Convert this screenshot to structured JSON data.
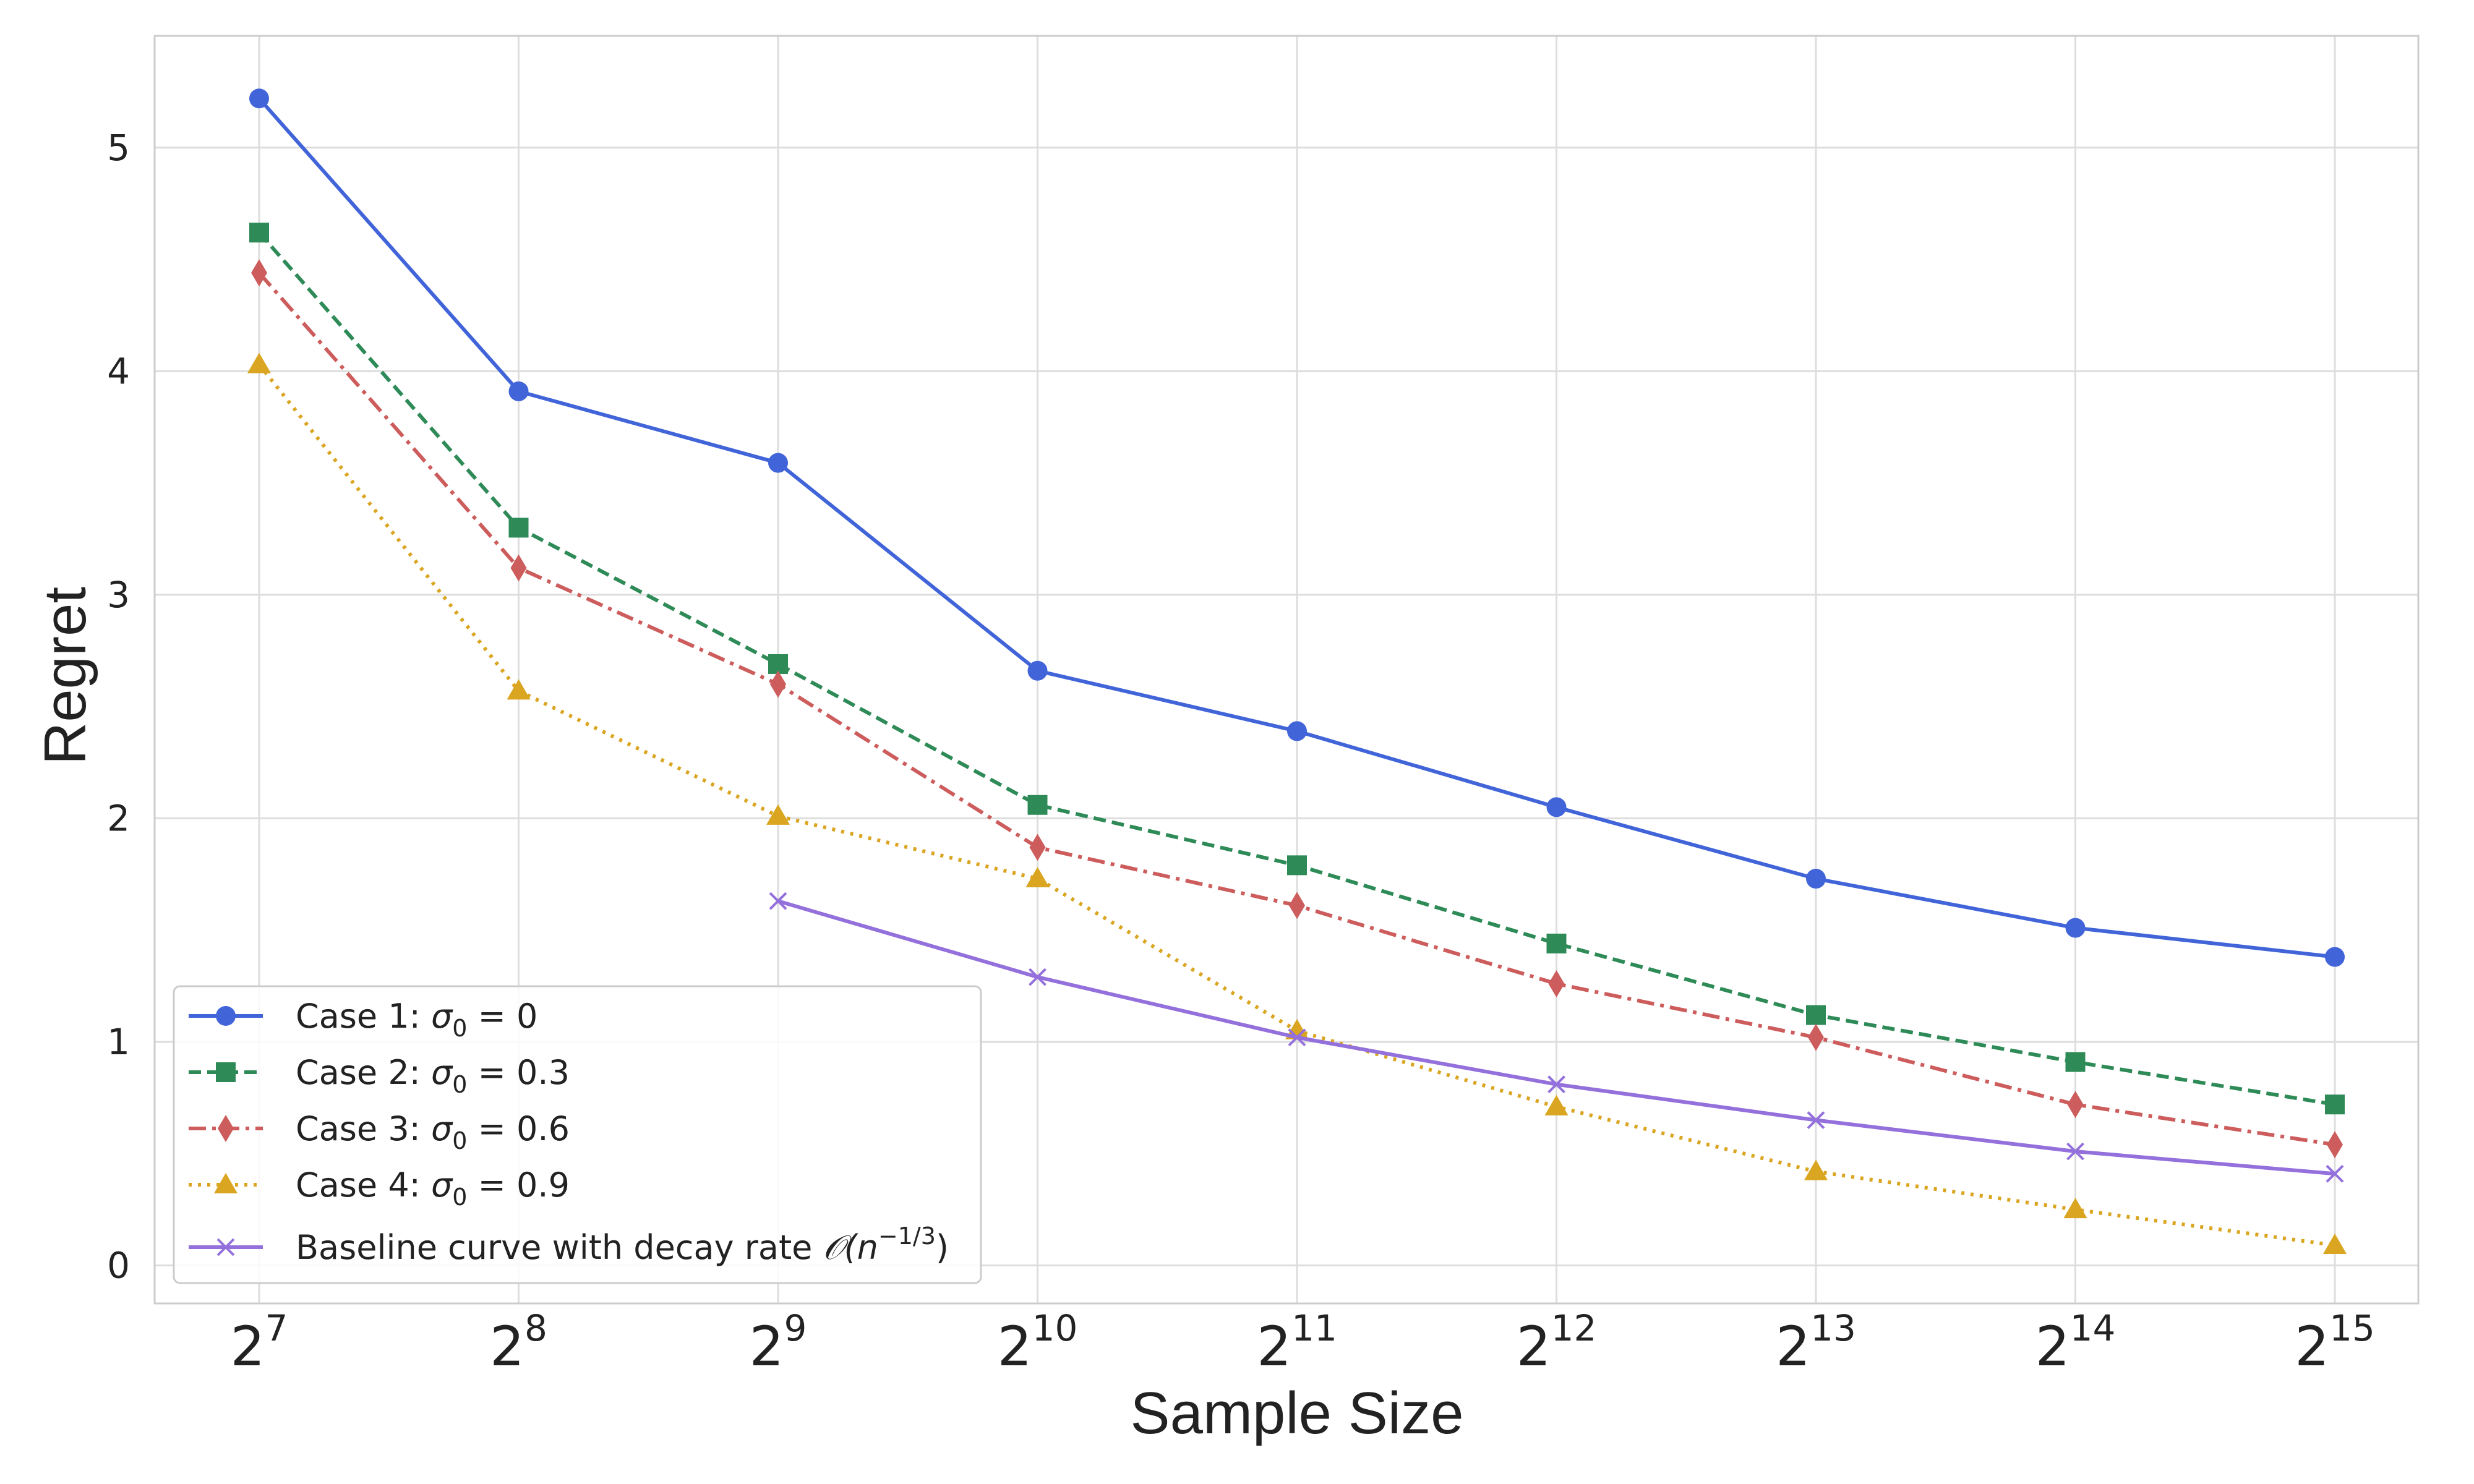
{
  "chart_data": {
    "type": "line",
    "title": "",
    "xlabel": "Sample Size",
    "ylabel": "Regret",
    "x_scale": "log2",
    "x_exponents": [
      7,
      8,
      9,
      10,
      11,
      12,
      13,
      14,
      15
    ],
    "x_base": "2",
    "x_ticks": [
      "7",
      "8",
      "9",
      "10",
      "11",
      "12",
      "13",
      "14",
      "15"
    ],
    "ylim": [
      -0.17,
      5.5
    ],
    "y_ticks": [
      "0",
      "1",
      "2",
      "3",
      "4",
      "5"
    ],
    "grid": true,
    "legend_position": "lower-left",
    "series": [
      {
        "name": "Case 1: σ0 = 0",
        "legend_label": "Case 1: ",
        "legend_math": "σ",
        "legend_sub": "0",
        "legend_rest": " = 0",
        "color": "#4164d9",
        "line_style": "solid",
        "marker": "circle",
        "x_exponents": [
          7,
          8,
          9,
          10,
          11,
          12,
          13,
          14,
          15
        ],
        "values": [
          5.22,
          3.91,
          3.59,
          2.66,
          2.39,
          2.05,
          1.73,
          1.51,
          1.38
        ]
      },
      {
        "name": "Case 2: σ0 = 0.3",
        "legend_label": "Case 2: ",
        "legend_math": "σ",
        "legend_sub": "0",
        "legend_rest": " = 0.3",
        "color": "#2e8b57",
        "line_style": "dashed",
        "marker": "square",
        "x_exponents": [
          7,
          8,
          9,
          10,
          11,
          12,
          13,
          14,
          15
        ],
        "values": [
          4.62,
          3.3,
          2.69,
          2.06,
          1.79,
          1.44,
          1.12,
          0.91,
          0.72
        ]
      },
      {
        "name": "Case 3: σ0 = 0.6",
        "legend_label": "Case 3: ",
        "legend_math": "σ",
        "legend_sub": "0",
        "legend_rest": " = 0.6",
        "color": "#cd5c5c",
        "line_style": "dashdot",
        "marker": "diamond",
        "x_exponents": [
          7,
          8,
          9,
          10,
          11,
          12,
          13,
          14,
          15
        ],
        "values": [
          4.44,
          3.12,
          2.6,
          1.87,
          1.61,
          1.26,
          1.02,
          0.72,
          0.54
        ]
      },
      {
        "name": "Case 4: σ0 = 0.9",
        "legend_label": "Case 4: ",
        "legend_math": "σ",
        "legend_sub": "0",
        "legend_rest": " = 0.9",
        "color": "#daa520",
        "line_style": "dotted",
        "marker": "triangle",
        "x_exponents": [
          7,
          8,
          9,
          10,
          11,
          12,
          13,
          14,
          15
        ],
        "values": [
          4.03,
          2.57,
          2.01,
          1.73,
          1.05,
          0.71,
          0.42,
          0.25,
          0.09
        ]
      },
      {
        "name": "Baseline curve with decay rate O(n^-1/3)",
        "legend_label": "Baseline curve with decay rate ",
        "legend_math": "𝒪(n",
        "legend_sup": "−1/3",
        "legend_rest": ")",
        "color": "#9370db",
        "line_style": "solid",
        "marker": "x",
        "x_exponents": [
          9,
          10,
          11,
          12,
          13,
          14,
          15
        ],
        "values": [
          1.63,
          1.29,
          1.02,
          0.81,
          0.65,
          0.51,
          0.41
        ]
      }
    ]
  }
}
